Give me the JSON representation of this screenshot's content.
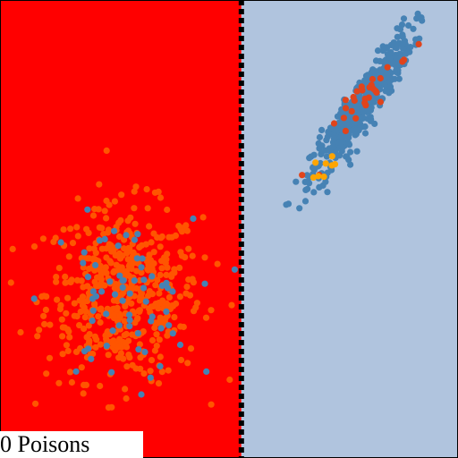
{
  "caption": "0 Poisons",
  "colors": {
    "left_region": "#ff0000",
    "right_region": "#b0c4de",
    "boundary": "#000000",
    "frame": "#000000",
    "class_orange": "#ff5500",
    "class_blue": "#4682b4",
    "class_gold": "#ffa500",
    "class_red": "#e0441c"
  },
  "chart_data": {
    "type": "scatter",
    "title": "",
    "xlabel": "",
    "ylabel": "",
    "xlim": [
      0,
      10
    ],
    "ylim": [
      0,
      10
    ],
    "grid": false,
    "legend": "none",
    "decision_boundary": {
      "x": 5.27,
      "style": "dashed"
    },
    "regions": [
      {
        "side": "left",
        "color": "#ff0000"
      },
      {
        "side": "right",
        "color": "#b0c4de"
      }
    ],
    "clusters": [
      {
        "color": "#ff5500",
        "n": 520,
        "mean": [
          2.7,
          3.6
        ],
        "sd": [
          0.85,
          0.95
        ],
        "rho": 0.0
      },
      {
        "color": "#4682b4",
        "n": 70,
        "mean": [
          2.6,
          3.4
        ],
        "sd": [
          0.8,
          0.9
        ],
        "rho": 0.0
      },
      {
        "color": "#4682b4",
        "n": 470,
        "mean": [
          7.9,
          7.7
        ],
        "sd": [
          0.55,
          0.82
        ],
        "rho": 0.93
      },
      {
        "color": "#e0441c",
        "n": 30,
        "mean": [
          8.1,
          8.0
        ],
        "sd": [
          0.4,
          0.55
        ],
        "rho": 0.9
      },
      {
        "color": "#ffa500",
        "n": 8,
        "mean": [
          7.1,
          6.4
        ],
        "sd": [
          0.12,
          0.12
        ],
        "rho": 0.3
      }
    ]
  }
}
